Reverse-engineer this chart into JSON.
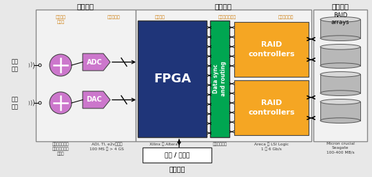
{
  "section_titles": {
    "rf_conversion": "射频变换",
    "data_routing": "数据路由",
    "storage": "存储设备"
  },
  "sub_labels": {
    "rf_frontend": "射频前端\n变频器",
    "data_acq": "数据采集器",
    "sys_ctrl": "系统控制",
    "data_sync_lbl": "数据同步和路由",
    "data_storage_mgmt": "数据存储管理"
  },
  "labels": {
    "rf_input": "射频\n输入",
    "rf_output": "射频\n输出",
    "adc": "ADC",
    "dac": "DAC",
    "fpga": "FPGA",
    "data_sync_routing": "Data sync\nand routing",
    "raid1": "RAID\ncontrollers",
    "raid2": "RAID\ncontrollers",
    "raid_arrays": "RAID\narrays",
    "pc": "电脑 / 工作站",
    "data_analysis": "数据分析"
  },
  "bottom_labels": {
    "rf_signal": "信号分析仪或者\n用户定制的上下\n变频器",
    "adc_chip": "ADI, TI, e2v等芯片\n100 MS 到 > 4 GS",
    "xilinx": "Xilinx 或 Altera",
    "user_circuit": "用户定制电路",
    "areca": "Areca 或 LSI Logic\n1 到 6 Gb/s",
    "micron": "Micron crucial\nSeagate\n100-400 MB/s"
  },
  "colors": {
    "fpga": "#1f3579",
    "data_sync": "#00a651",
    "raid": "#f5a623",
    "bg": "#e8e8e8",
    "section_bg": "#f2f2f2",
    "mixer": "#cc77cc",
    "arrow": "#000000",
    "subtitle": "#cc7700",
    "section_border": "#777777",
    "cyl": "#b8b8b8",
    "cyl_top": "#d8d8d8",
    "white": "#ffffff"
  }
}
